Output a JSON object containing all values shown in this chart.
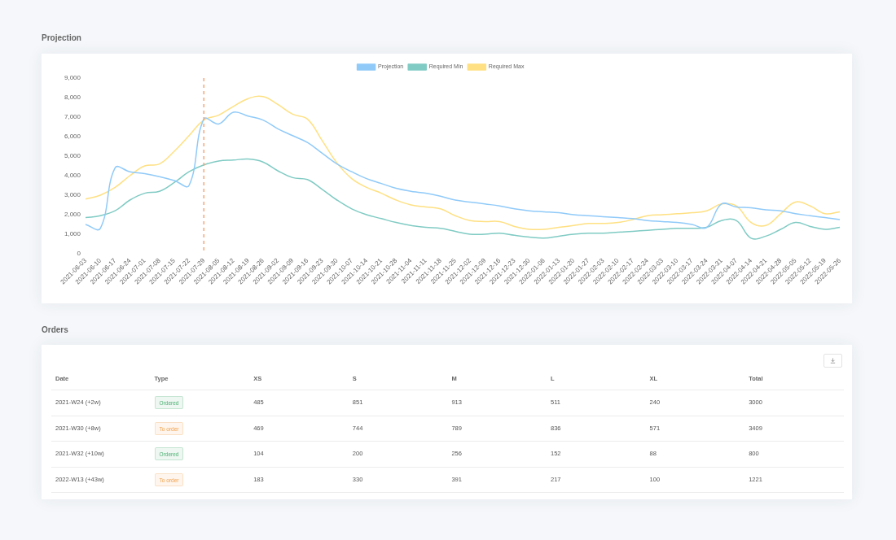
{
  "chart_data": [
    {
      "type": "line",
      "title": "Projection",
      "legend": "top",
      "marker": "none",
      "line_style": "solid",
      "categories": [
        "2021-06-03",
        "2021-06-10",
        "2021-06-17",
        "2021-06-24",
        "2021-07-01",
        "2021-07-08",
        "2021-07-15",
        "2021-07-22",
        "2021-07-29",
        "2021-08-05",
        "2021-08-12",
        "2021-08-19",
        "2021-08-26",
        "2021-09-02",
        "2021-09-09",
        "2021-09-16",
        "2021-09-23",
        "2021-09-30",
        "2021-10-07",
        "2021-10-14",
        "2021-10-21",
        "2021-10-28",
        "2021-11-04",
        "2021-11-11",
        "2021-11-18",
        "2021-11-25",
        "2021-12-02",
        "2021-12-09",
        "2021-12-16",
        "2021-12-23",
        "2021-12-30",
        "2022-01-06",
        "2022-01-13",
        "2022-01-20",
        "2022-01-27",
        "2022-02-03",
        "2022-02-10",
        "2022-02-17",
        "2022-02-24",
        "2022-03-03",
        "2022-03-10",
        "2022-03-17",
        "2022-03-24",
        "2022-03-31",
        "2022-04-07",
        "2022-04-14",
        "2022-04-21",
        "2022-04-28",
        "2022-05-05",
        "2022-05-12",
        "2022-05-19",
        "2022-05-26"
      ],
      "series": [
        {
          "name": "Projection",
          "color": "#90caf9",
          "values": [
            1500,
            1300,
            4400,
            4200,
            4100,
            3950,
            3750,
            3500,
            6900,
            6650,
            7250,
            7050,
            6850,
            6400,
            6050,
            5700,
            5150,
            4600,
            4200,
            3850,
            3600,
            3350,
            3200,
            3100,
            2950,
            2750,
            2650,
            2550,
            2450,
            2300,
            2200,
            2150,
            2100,
            2000,
            1950,
            1900,
            1850,
            1800,
            1700,
            1650,
            1600,
            1500,
            1350,
            2550,
            2400,
            2350,
            2250,
            2200,
            2050,
            1950,
            1850,
            1750
          ]
        },
        {
          "name": "Required Min",
          "color": "#80cbc4",
          "values": [
            1850,
            1950,
            2200,
            2750,
            3100,
            3200,
            3650,
            4200,
            4550,
            4750,
            4800,
            4850,
            4700,
            4250,
            3900,
            3800,
            3300,
            2750,
            2300,
            2000,
            1800,
            1600,
            1450,
            1350,
            1300,
            1150,
            1000,
            1000,
            1050,
            950,
            850,
            800,
            900,
            1000,
            1050,
            1050,
            1100,
            1150,
            1200,
            1250,
            1300,
            1300,
            1350,
            1700,
            1700,
            800,
            900,
            1250,
            1600,
            1400,
            1250,
            1350
          ]
        },
        {
          "name": "Required Max",
          "color": "#ffe082",
          "values": [
            2800,
            3000,
            3400,
            4000,
            4500,
            4600,
            5250,
            6050,
            6850,
            7100,
            7550,
            7950,
            8050,
            7650,
            7150,
            6900,
            5800,
            4650,
            3850,
            3400,
            3100,
            2750,
            2500,
            2400,
            2300,
            1950,
            1700,
            1650,
            1650,
            1400,
            1250,
            1250,
            1350,
            1450,
            1550,
            1550,
            1600,
            1750,
            1950,
            2000,
            2050,
            2100,
            2200,
            2550,
            2450,
            1600,
            1450,
            2050,
            2650,
            2450,
            2050,
            2150
          ]
        }
      ],
      "ylim": [
        0,
        9000
      ],
      "yticks": [
        0,
        {
          "value": 1000,
          "label": "1,000"
        },
        {
          "value": 2000,
          "label": "2,000"
        },
        {
          "value": 3000,
          "label": "3,000"
        },
        {
          "value": 4000,
          "label": "4,000"
        },
        {
          "value": 5000,
          "label": "5,000"
        },
        {
          "value": 6000,
          "label": "6,000"
        },
        {
          "value": 7000,
          "label": "7,000"
        },
        {
          "value": 8000,
          "label": "8,000"
        },
        {
          "value": 9000,
          "label": "9,000"
        }
      ],
      "ref_lines": [
        {
          "axis": "x",
          "value": "2021-07-29",
          "color": "#f4a77a",
          "line_style": "dashed"
        }
      ]
    },
    {
      "type": "other",
      "title": "Orders",
      "categories": [
        "Date",
        "Type",
        "XS",
        "S",
        "M",
        "L",
        "XL",
        "Total"
      ],
      "annotations": [
        "2021-W24 (+2w)",
        "Ordered",
        "485",
        "851",
        "913",
        "511",
        "240",
        "3000",
        "2021-W30 (+8w)",
        "To order",
        "469",
        "744",
        "789",
        "836",
        "571",
        "3409",
        "2021-W32 (+10w)",
        "Ordered",
        "104",
        "200",
        "256",
        "152",
        "88",
        "800",
        "2022-W13 (+43w)",
        "To order",
        "183",
        "330",
        "391",
        "217",
        "100",
        "1221"
      ],
      "colors": [
        null,
        "#4caf72",
        null,
        null,
        null,
        null,
        null,
        null,
        null,
        "#f0a04b",
        null,
        null,
        null,
        null,
        null,
        null,
        null,
        "#4caf72",
        null,
        null,
        null,
        null,
        null,
        null,
        null,
        "#f0a04b",
        null,
        null,
        null,
        null,
        null,
        null
      ]
    }
  ]
}
